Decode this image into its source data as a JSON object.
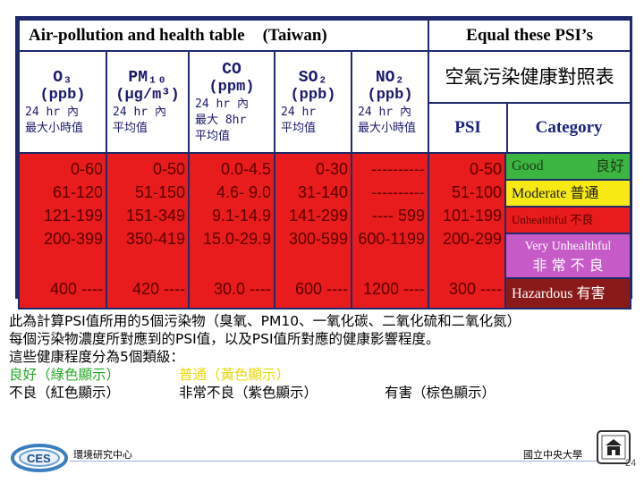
{
  "table": {
    "title": "Air-pollution and health table",
    "title_region": "(Taiwan)",
    "equal_header": "Equal these PSI’s",
    "chinese_title": "空氣污染健康對照表",
    "psi_header": "PSI",
    "category_header": "Category",
    "pollutants": [
      {
        "name": "O₃",
        "unit": "(ppb)",
        "avg": [
          "24 hr 內",
          "最大小時值"
        ]
      },
      {
        "name": "PM₁₀",
        "unit": "(μg/m³)",
        "avg": [
          "24 hr 內",
          "平均值"
        ]
      },
      {
        "name": "CO",
        "unit": "(ppm)",
        "avg": [
          "24 hr 內",
          "最大 8hr",
          "平均值"
        ]
      },
      {
        "name": "SO₂",
        "unit": "(ppb)",
        "avg": [
          "24 hr",
          "平均值"
        ]
      },
      {
        "name": "NO₂",
        "unit": "(ppb)",
        "avg": [
          "24 hr 內",
          "最大小時值"
        ]
      }
    ],
    "rows": [
      {
        "o3": "0-60",
        "pm10": "0-50",
        "co": "0.0-4.5",
        "so2": "0-30",
        "no2": "----------",
        "psi": "0-50"
      },
      {
        "o3": "61-120",
        "pm10": "51-150",
        "co": "4.6- 9.0",
        "so2": "31-140",
        "no2": "----------",
        "psi": "51-100"
      },
      {
        "o3": "121-199",
        "pm10": "151-349",
        "co": "9.1-14.9",
        "so2": "141-299",
        "no2": "---- 599",
        "psi": "101-199"
      },
      {
        "o3": "200-399",
        "pm10": "350-419",
        "co": "15.0-29.9",
        "so2": "300-599",
        "no2": "600-1199",
        "psi": "200-299"
      },
      {
        "o3": "400 ----",
        "pm10": "420 ----",
        "co": "30.0 ----",
        "so2": "600 ----",
        "no2": "1200 ----",
        "psi": "300 ----"
      }
    ],
    "categories": [
      {
        "en": "Good",
        "cn": "良好",
        "color": "#3db541"
      },
      {
        "en": "Moderate",
        "cn": "普通",
        "color": "#f7ea14"
      },
      {
        "en": "Unhealthful",
        "cn": "不良",
        "color": "#e81c1c"
      },
      {
        "en": "Very Unhealthful",
        "cn": "非 常 不 良",
        "color": "#c65bc8"
      },
      {
        "en": "Hazardous",
        "cn": "有害",
        "color": "#8a1a1a"
      }
    ]
  },
  "description": {
    "line1": "此為計算PSI值所用的5個污染物（臭氧、PM10、一氧化碳、二氧化硫和二氧化氮）",
    "line2": "每個污染物濃度所對應到的PSI值，以及PSI值所對應的健康影響程度。",
    "line3": "這些健康程度分為5個類級：",
    "good": "良好（綠色顯示）",
    "moderate": "普通（黃色顯示）",
    "unhealthful": "不良（紅色顯示）",
    "very_unhealthful": "非常不良（紫色顯示）",
    "hazardous": "有害（棕色顯示）",
    "good_color": "#1faa1f",
    "moderate_color": "#e8d800"
  },
  "footer": {
    "left_logo_text": "CES",
    "center": "環境研究中心",
    "right": "國立中央大學",
    "page": "24"
  }
}
